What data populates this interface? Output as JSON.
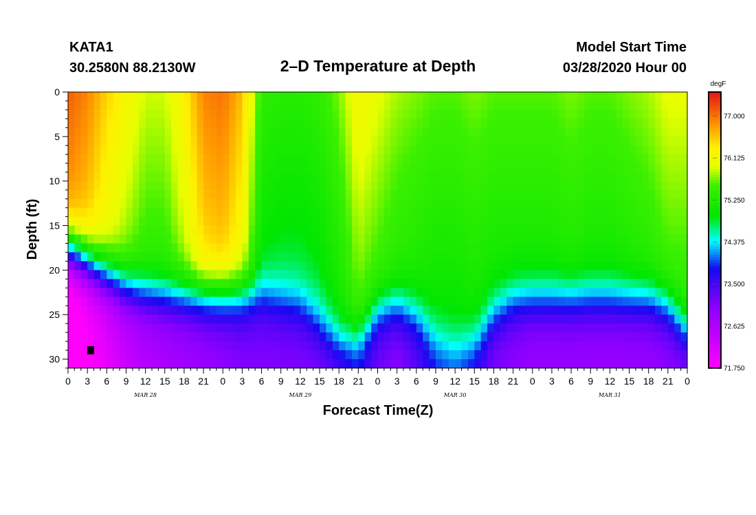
{
  "header": {
    "station": "KATA1",
    "coords": "30.2580N 88.2130W",
    "title": "2–D Temperature at Depth",
    "model_label": "Model Start Time",
    "model_time": "03/28/2020 Hour 00"
  },
  "chart_data": {
    "type": "heatmap",
    "title": "2–D Temperature at Depth",
    "xlabel": "Forecast Time(Z)",
    "ylabel": "Depth (ft)",
    "x_range_hours": [
      0,
      96
    ],
    "y_range_ft": [
      0,
      31
    ],
    "x_tick_labels": [
      "0",
      "3",
      "6",
      "9",
      "12",
      "15",
      "18",
      "21",
      "0",
      "3",
      "6",
      "9",
      "12",
      "15",
      "18",
      "21",
      "0",
      "3",
      "6",
      "9",
      "12",
      "15",
      "18",
      "21",
      "0",
      "3",
      "6",
      "9",
      "12",
      "15",
      "18",
      "21",
      "0"
    ],
    "y_ticks": [
      "0",
      "5",
      "10",
      "15",
      "20",
      "25",
      "30"
    ],
    "date_labels": [
      {
        "text": "MAR 28",
        "hour": 12
      },
      {
        "text": "MAR 29",
        "hour": 36
      },
      {
        "text": "MAR 30",
        "hour": 60
      },
      {
        "text": "MAR 31",
        "hour": 84
      }
    ],
    "colorbar": {
      "unit": "degF",
      "min": 71.75,
      "max": 77.5,
      "labels": [
        "77.000",
        "76.125",
        "75.250",
        "74.375",
        "73.500",
        "72.625",
        "71.750"
      ],
      "label_values": [
        77.0,
        76.125,
        75.25,
        74.375,
        73.5,
        72.625,
        71.75
      ]
    },
    "profile": {
      "hours": [
        0,
        3,
        6,
        9,
        12,
        15,
        18,
        21,
        24,
        27,
        30,
        33,
        36,
        39,
        42,
        45,
        48,
        51,
        54,
        57,
        60,
        63,
        66,
        69,
        72,
        75,
        78,
        81,
        84,
        87,
        90,
        93,
        96
      ],
      "surface_temp_degF": [
        77.1,
        76.9,
        76.5,
        76.2,
        75.9,
        75.9,
        76.3,
        76.9,
        77.0,
        76.6,
        75.4,
        75.3,
        75.3,
        75.4,
        75.7,
        76.2,
        76.0,
        75.8,
        75.7,
        75.6,
        75.6,
        75.7,
        75.6,
        75.6,
        75.6,
        75.6,
        75.7,
        75.6,
        75.6,
        75.7,
        75.8,
        76.0,
        76.0
      ],
      "thermocline_depth_ft": [
        17.5,
        19.0,
        20.5,
        21.8,
        22.5,
        22.8,
        22.8,
        22.8,
        22.8,
        22.8,
        22.8,
        23.5,
        24.0,
        26.0,
        28.0,
        27.5,
        24.5,
        24.0,
        25.0,
        27.5,
        28.5,
        28.0,
        25.0,
        23.5,
        23.3,
        23.3,
        23.3,
        23.2,
        23.2,
        23.3,
        23.3,
        24.0,
        27.0
      ],
      "bottom_temp_degF": [
        71.75,
        72.0,
        72.3,
        72.6,
        72.8,
        72.9,
        73.0,
        73.1,
        73.2,
        73.3,
        73.3,
        73.3,
        73.3,
        73.3,
        73.4,
        73.8,
        73.4,
        73.2,
        73.5,
        73.9,
        74.0,
        73.7,
        73.3,
        73.2,
        73.1,
        73.1,
        73.1,
        73.1,
        73.1,
        73.1,
        73.1,
        73.2,
        73.2
      ]
    },
    "marker": {
      "hour": 3.5,
      "depth_ft": 29.0
    }
  }
}
